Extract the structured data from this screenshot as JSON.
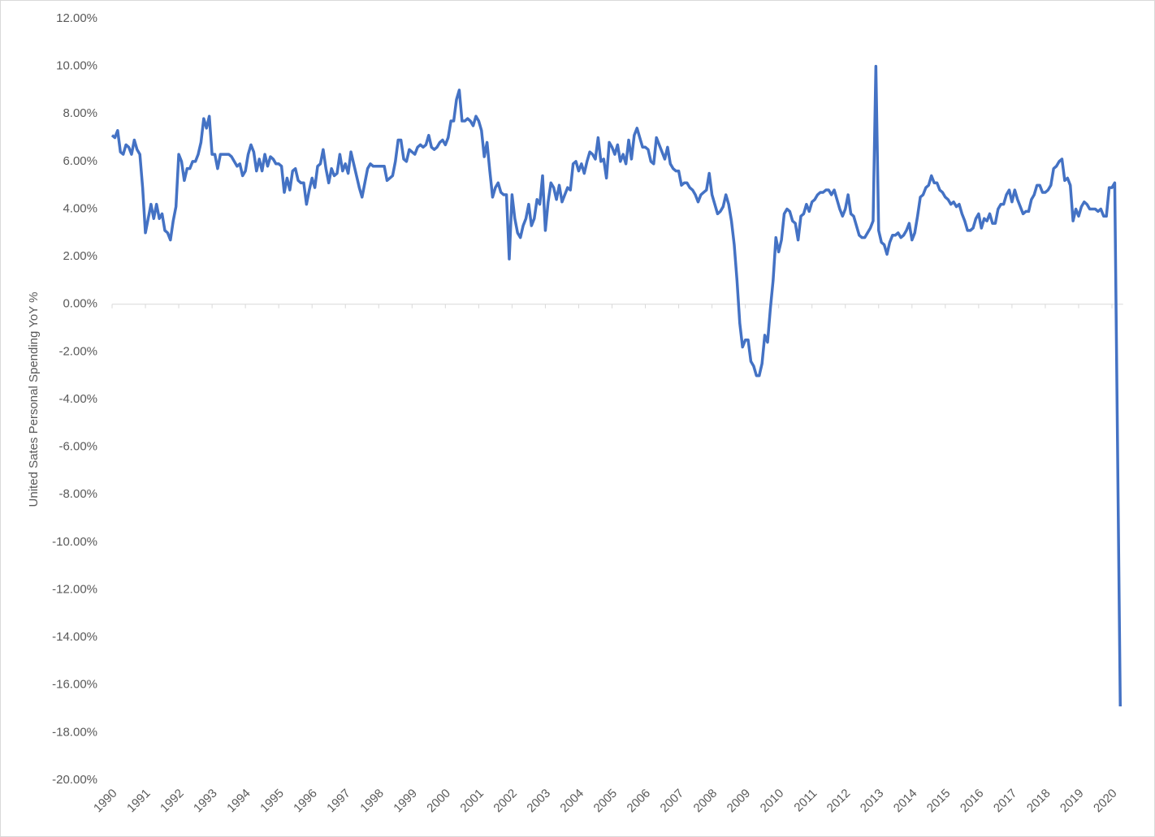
{
  "chart_data": {
    "type": "line",
    "y_label": "United Sates Personal Spending YoY %",
    "color": "#4472c4",
    "categories": [
      "1990",
      null,
      null,
      null,
      null,
      null,
      null,
      null,
      null,
      null,
      null,
      null,
      "1991",
      null,
      null,
      null,
      null,
      null,
      null,
      null,
      null,
      null,
      null,
      null,
      "1992",
      null,
      null,
      null,
      null,
      null,
      null,
      null,
      null,
      null,
      null,
      null,
      "1993",
      null,
      null,
      null,
      null,
      null,
      null,
      null,
      null,
      null,
      null,
      null,
      "1994",
      null,
      null,
      null,
      null,
      null,
      null,
      null,
      null,
      null,
      null,
      null,
      "1995",
      null,
      null,
      null,
      null,
      null,
      null,
      null,
      null,
      null,
      null,
      null,
      "1996",
      null,
      null,
      null,
      null,
      null,
      null,
      null,
      null,
      null,
      null,
      null,
      "1997",
      null,
      null,
      null,
      null,
      null,
      null,
      null,
      null,
      null,
      null,
      null,
      "1998",
      null,
      null,
      null,
      null,
      null,
      null,
      null,
      null,
      null,
      null,
      null,
      "1999",
      null,
      null,
      null,
      null,
      null,
      null,
      null,
      null,
      null,
      null,
      null,
      "2000",
      null,
      null,
      null,
      null,
      null,
      null,
      null,
      null,
      null,
      null,
      null,
      "2001",
      null,
      null,
      null,
      null,
      null,
      null,
      null,
      null,
      null,
      null,
      null,
      "2002",
      null,
      null,
      null,
      null,
      null,
      null,
      null,
      null,
      null,
      null,
      null,
      "2003",
      null,
      null,
      null,
      null,
      null,
      null,
      null,
      null,
      null,
      null,
      null,
      "2004",
      null,
      null,
      null,
      null,
      null,
      null,
      null,
      null,
      null,
      null,
      null,
      "2005",
      null,
      null,
      null,
      null,
      null,
      null,
      null,
      null,
      null,
      null,
      null,
      "2006",
      null,
      null,
      null,
      null,
      null,
      null,
      null,
      null,
      null,
      null,
      null,
      "2007",
      null,
      null,
      null,
      null,
      null,
      null,
      null,
      null,
      null,
      null,
      null,
      "2008",
      null,
      null,
      null,
      null,
      null,
      null,
      null,
      null,
      null,
      null,
      null,
      "2009",
      null,
      null,
      null,
      null,
      null,
      null,
      null,
      null,
      null,
      null,
      null,
      "2010",
      null,
      null,
      null,
      null,
      null,
      null,
      null,
      null,
      null,
      null,
      null,
      "2011",
      null,
      null,
      null,
      null,
      null,
      null,
      null,
      null,
      null,
      null,
      null,
      "2012",
      null,
      null,
      null,
      null,
      null,
      null,
      null,
      null,
      null,
      null,
      null,
      "2013",
      null,
      null,
      null,
      null,
      null,
      null,
      null,
      null,
      null,
      null,
      null,
      "2014",
      null,
      null,
      null,
      null,
      null,
      null,
      null,
      null,
      null,
      null,
      null,
      "2015",
      null,
      null,
      null,
      null,
      null,
      null,
      null,
      null,
      null,
      null,
      null,
      "2016",
      null,
      null,
      null,
      null,
      null,
      null,
      null,
      null,
      null,
      null,
      null,
      "2017",
      null,
      null,
      null,
      null,
      null,
      null,
      null,
      null,
      null,
      null,
      null,
      "2018",
      null,
      null,
      null,
      null,
      null,
      null,
      null,
      null,
      null,
      null,
      null,
      "2019",
      null,
      null,
      null,
      null,
      null,
      null,
      null,
      null,
      null,
      null,
      null,
      "2020",
      null,
      null,
      null
    ],
    "values": [
      7.1,
      7.0,
      7.3,
      6.4,
      6.3,
      6.7,
      6.6,
      6.3,
      6.9,
      6.5,
      6.3,
      4.9,
      3.0,
      3.6,
      4.2,
      3.6,
      4.2,
      3.6,
      3.8,
      3.1,
      3.0,
      2.7,
      3.5,
      4.1,
      6.3,
      6.0,
      5.2,
      5.7,
      5.7,
      6.0,
      6.0,
      6.3,
      6.8,
      7.8,
      7.4,
      7.9,
      6.3,
      6.3,
      5.7,
      6.3,
      6.3,
      6.3,
      6.3,
      6.2,
      6.0,
      5.8,
      5.9,
      5.4,
      5.6,
      6.3,
      6.7,
      6.4,
      5.6,
      6.1,
      5.6,
      6.3,
      5.8,
      6.2,
      6.1,
      5.9,
      5.9,
      5.8,
      4.7,
      5.3,
      4.8,
      5.6,
      5.7,
      5.2,
      5.1,
      5.1,
      4.2,
      4.8,
      5.3,
      4.9,
      5.8,
      5.9,
      6.5,
      5.7,
      5.1,
      5.7,
      5.4,
      5.5,
      6.3,
      5.6,
      5.9,
      5.5,
      6.4,
      5.9,
      5.4,
      4.9,
      4.5,
      5.1,
      5.7,
      5.9,
      5.8,
      5.8,
      5.8,
      5.8,
      5.8,
      5.2,
      5.3,
      5.4,
      6.0,
      6.9,
      6.9,
      6.1,
      6.0,
      6.5,
      6.4,
      6.3,
      6.6,
      6.7,
      6.6,
      6.7,
      7.1,
      6.6,
      6.5,
      6.6,
      6.8,
      6.9,
      6.7,
      7.0,
      7.7,
      7.7,
      8.6,
      9.0,
      7.7,
      7.7,
      7.8,
      7.7,
      7.5,
      7.9,
      7.7,
      7.3,
      6.2,
      6.8,
      5.6,
      4.5,
      4.9,
      5.1,
      4.7,
      4.6,
      4.6,
      1.9,
      4.6,
      3.6,
      3.0,
      2.8,
      3.3,
      3.6,
      4.2,
      3.3,
      3.6,
      4.4,
      4.2,
      5.4,
      3.1,
      4.3,
      5.1,
      4.9,
      4.4,
      5.0,
      4.3,
      4.6,
      4.9,
      4.8,
      5.9,
      6.0,
      5.6,
      5.9,
      5.5,
      6.0,
      6.4,
      6.3,
      6.1,
      7.0,
      6.0,
      6.1,
      5.3,
      6.8,
      6.6,
      6.3,
      6.7,
      6.0,
      6.3,
      5.9,
      6.9,
      6.1,
      7.1,
      7.4,
      7.0,
      6.6,
      6.6,
      6.5,
      6.0,
      5.9,
      7.0,
      6.7,
      6.4,
      6.1,
      6.6,
      5.9,
      5.7,
      5.6,
      5.6,
      5.0,
      5.1,
      5.1,
      4.9,
      4.8,
      4.6,
      4.3,
      4.6,
      4.7,
      4.8,
      5.5,
      4.6,
      4.2,
      3.8,
      3.9,
      4.1,
      4.6,
      4.2,
      3.5,
      2.5,
      1.0,
      -0.8,
      -1.8,
      -1.5,
      -1.5,
      -2.4,
      -2.6,
      -3.0,
      -3.0,
      -2.5,
      -1.3,
      -1.6,
      -0.2,
      1.0,
      2.8,
      2.2,
      2.7,
      3.8,
      4.0,
      3.9,
      3.5,
      3.4,
      2.7,
      3.7,
      3.8,
      4.2,
      3.9,
      4.3,
      4.4,
      4.6,
      4.7,
      4.7,
      4.8,
      4.8,
      4.6,
      4.8,
      4.4,
      4.0,
      3.7,
      4.0,
      4.6,
      3.8,
      3.7,
      3.3,
      2.9,
      2.8,
      2.8,
      3.0,
      3.2,
      3.5,
      10.0,
      3.1,
      2.6,
      2.5,
      2.1,
      2.6,
      2.9,
      2.9,
      3.0,
      2.8,
      2.9,
      3.1,
      3.4,
      2.7,
      3.0,
      3.7,
      4.5,
      4.6,
      4.9,
      5.0,
      5.4,
      5.1,
      5.1,
      4.8,
      4.7,
      4.5,
      4.4,
      4.2,
      4.3,
      4.1,
      4.2,
      3.8,
      3.5,
      3.1,
      3.1,
      3.2,
      3.6,
      3.8,
      3.2,
      3.6,
      3.5,
      3.8,
      3.4,
      3.4,
      4.0,
      4.2,
      4.2,
      4.6,
      4.8,
      4.3,
      4.8,
      4.4,
      4.1,
      3.8,
      3.9,
      3.9,
      4.4,
      4.6,
      5.0,
      5.0,
      4.7,
      4.7,
      4.8,
      5.0,
      5.7,
      5.8,
      6.0,
      6.1,
      5.2,
      5.3,
      5.0,
      3.5,
      4.0,
      3.7,
      4.1,
      4.3,
      4.2,
      4.0,
      4.0,
      4.0,
      3.9,
      4.0,
      3.7,
      3.7,
      4.9,
      4.9,
      5.1,
      -5.8,
      -16.9
    ],
    "ylim": [
      -20,
      12
    ],
    "yticks": [
      {
        "value": 12,
        "label": "12.00%"
      },
      {
        "value": 10,
        "label": "10.00%"
      },
      {
        "value": 8,
        "label": "8.00%"
      },
      {
        "value": 6,
        "label": "6.00%"
      },
      {
        "value": 4,
        "label": "4.00%"
      },
      {
        "value": 2,
        "label": "2.00%"
      },
      {
        "value": 0,
        "label": "0.00%"
      },
      {
        "value": -2,
        "label": "-2.00%"
      },
      {
        "value": -4,
        "label": "-4.00%"
      },
      {
        "value": -6,
        "label": "-6.00%"
      },
      {
        "value": -8,
        "label": "-8.00%"
      },
      {
        "value": -10,
        "label": "-10.00%"
      },
      {
        "value": -12,
        "label": "-12.00%"
      },
      {
        "value": -14,
        "label": "-14.00%"
      },
      {
        "value": -16,
        "label": "-16.00%"
      },
      {
        "value": -18,
        "label": "-18.00%"
      },
      {
        "value": -20,
        "label": "-20.00%"
      }
    ],
    "grid": false
  }
}
